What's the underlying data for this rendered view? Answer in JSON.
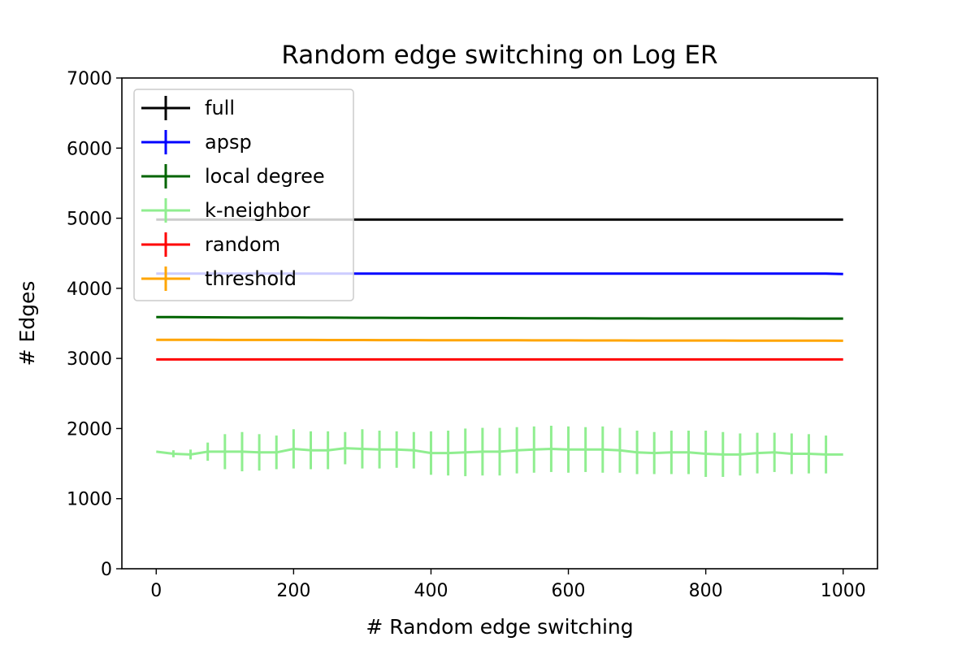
{
  "chart_data": {
    "type": "line",
    "title": "Random edge switching on Log ER",
    "xlabel": "# Random edge switching",
    "ylabel": "# Edges",
    "xlim": [
      -50,
      1050
    ],
    "ylim": [
      0,
      7000
    ],
    "xticks": [
      0,
      200,
      400,
      600,
      800,
      1000
    ],
    "yticks": [
      0,
      1000,
      2000,
      3000,
      4000,
      5000,
      6000,
      7000
    ],
    "grid": false,
    "legend_position": "top-left",
    "x": [
      0,
      25,
      50,
      75,
      100,
      125,
      150,
      175,
      200,
      225,
      250,
      275,
      300,
      325,
      350,
      375,
      400,
      425,
      450,
      475,
      500,
      525,
      550,
      575,
      600,
      625,
      650,
      675,
      700,
      725,
      750,
      775,
      800,
      825,
      850,
      875,
      900,
      925,
      950,
      975,
      1000
    ],
    "series": [
      {
        "name": "full",
        "color": "#000000",
        "values": [
          4980,
          4980,
          4980,
          4980,
          4980,
          4980,
          4980,
          4980,
          4980,
          4980,
          4980,
          4980,
          4980,
          4980,
          4980,
          4980,
          4980,
          4980,
          4980,
          4980,
          4980,
          4980,
          4980,
          4980,
          4980,
          4980,
          4980,
          4980,
          4980,
          4980,
          4980,
          4980,
          4980,
          4980,
          4980,
          4980,
          4980,
          4980,
          4980,
          4980,
          4980
        ],
        "errors": []
      },
      {
        "name": "apsp",
        "color": "#0000ff",
        "values": [
          4210,
          4210,
          4210,
          4210,
          4210,
          4210,
          4210,
          4210,
          4210,
          4210,
          4210,
          4210,
          4210,
          4210,
          4210,
          4210,
          4210,
          4210,
          4210,
          4210,
          4210,
          4210,
          4210,
          4210,
          4210,
          4210,
          4210,
          4210,
          4210,
          4210,
          4210,
          4210,
          4210,
          4210,
          4210,
          4210,
          4210,
          4210,
          4210,
          4210,
          4205
        ],
        "errors": []
      },
      {
        "name": "local degree",
        "color": "#006400",
        "values": [
          3590,
          3590,
          3588,
          3587,
          3586,
          3585,
          3585,
          3584,
          3583,
          3582,
          3582,
          3581,
          3580,
          3580,
          3579,
          3578,
          3577,
          3576,
          3576,
          3575,
          3575,
          3574,
          3573,
          3573,
          3572,
          3572,
          3571,
          3571,
          3571,
          3570,
          3570,
          3570,
          3570,
          3569,
          3569,
          3569,
          3569,
          3569,
          3568,
          3568,
          3568
        ],
        "errors": []
      },
      {
        "name": "k-neighbor",
        "color": "#90ee90",
        "values": [
          1670,
          1640,
          1630,
          1670,
          1670,
          1670,
          1660,
          1660,
          1710,
          1690,
          1690,
          1720,
          1710,
          1700,
          1700,
          1690,
          1650,
          1650,
          1660,
          1670,
          1670,
          1690,
          1700,
          1710,
          1700,
          1700,
          1700,
          1690,
          1660,
          1650,
          1660,
          1660,
          1640,
          1630,
          1630,
          1650,
          1660,
          1640,
          1640,
          1630,
          1630
        ],
        "errors": [
          0,
          50,
          70,
          130,
          250,
          280,
          260,
          240,
          280,
          270,
          270,
          230,
          280,
          270,
          260,
          260,
          310,
          320,
          340,
          340,
          340,
          330,
          330,
          330,
          330,
          320,
          330,
          320,
          310,
          300,
          310,
          310,
          330,
          320,
          300,
          290,
          280,
          290,
          280,
          270,
          0
        ]
      },
      {
        "name": "random",
        "color": "#ff0000",
        "values": [
          2985,
          2985,
          2985,
          2985,
          2985,
          2985,
          2985,
          2985,
          2985,
          2985,
          2985,
          2985,
          2985,
          2985,
          2985,
          2985,
          2985,
          2985,
          2985,
          2985,
          2985,
          2985,
          2985,
          2985,
          2985,
          2985,
          2985,
          2985,
          2985,
          2985,
          2985,
          2985,
          2985,
          2985,
          2985,
          2985,
          2985,
          2985,
          2985,
          2985,
          2985
        ],
        "errors": []
      },
      {
        "name": "threshold",
        "color": "#ffa500",
        "values": [
          3265,
          3265,
          3265,
          3265,
          3264,
          3264,
          3264,
          3263,
          3263,
          3263,
          3262,
          3262,
          3262,
          3261,
          3261,
          3261,
          3260,
          3260,
          3260,
          3259,
          3259,
          3259,
          3258,
          3258,
          3258,
          3257,
          3257,
          3257,
          3256,
          3256,
          3256,
          3255,
          3255,
          3255,
          3254,
          3254,
          3254,
          3253,
          3253,
          3253,
          3252
        ],
        "errors": []
      }
    ]
  }
}
